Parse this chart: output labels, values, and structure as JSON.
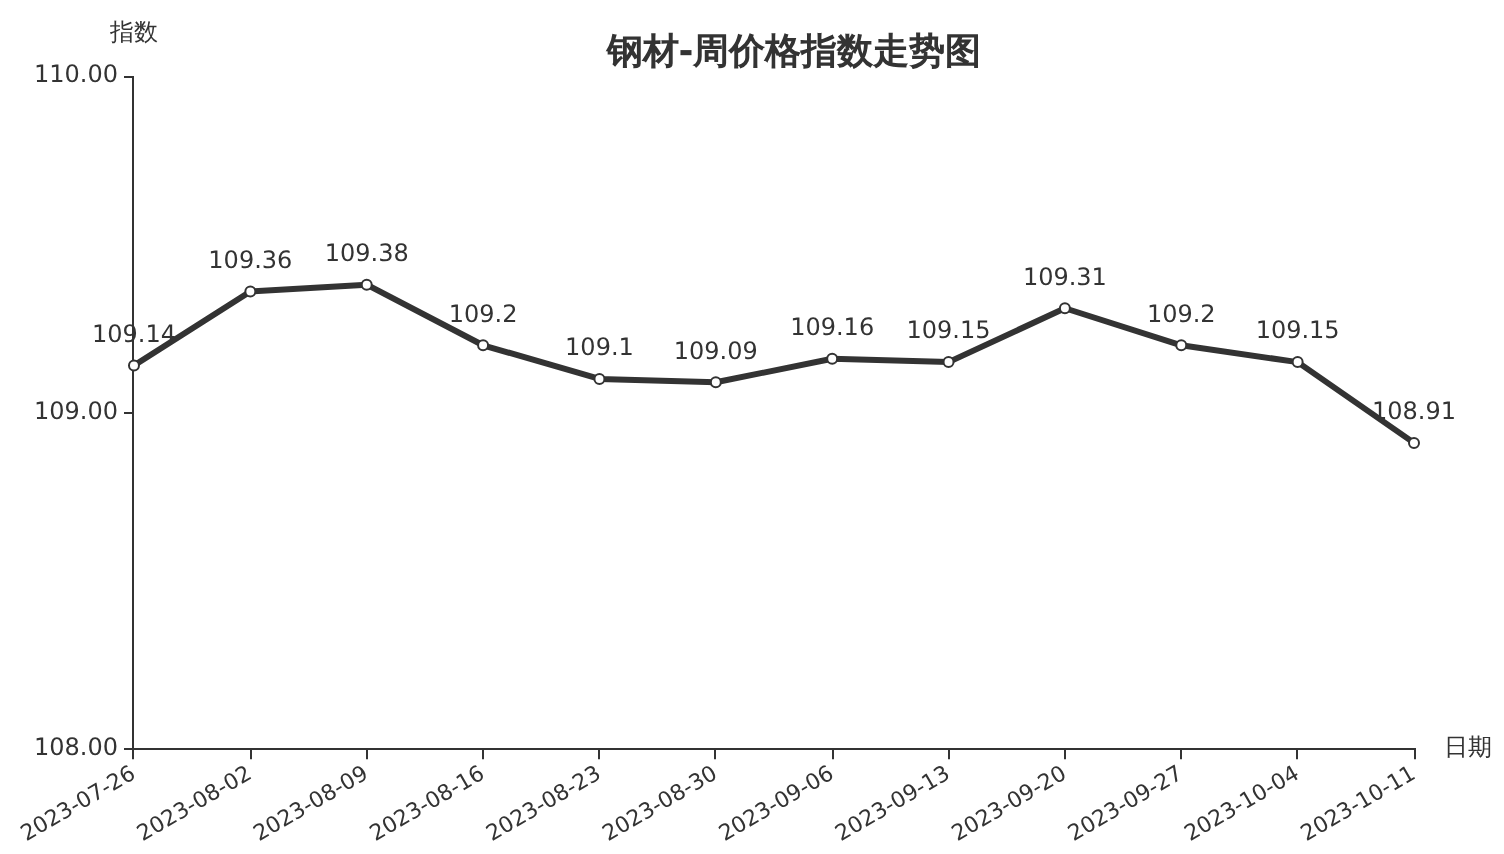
{
  "chart_data": {
    "type": "line",
    "title": "钢材-周价格指数走势图",
    "xlabel": "日期",
    "ylabel": "指数",
    "categories": [
      "2023-07-26",
      "2023-08-02",
      "2023-08-09",
      "2023-08-16",
      "2023-08-23",
      "2023-08-30",
      "2023-09-06",
      "2023-09-13",
      "2023-09-20",
      "2023-09-27",
      "2023-10-04",
      "2023-10-11"
    ],
    "values": [
      109.14,
      109.36,
      109.38,
      109.2,
      109.1,
      109.09,
      109.16,
      109.15,
      109.31,
      109.2,
      109.15,
      108.91
    ],
    "color": "#333333",
    "ylim": [
      108,
      110
    ],
    "yticks": [
      {
        "value": 108,
        "label": "108.00"
      },
      {
        "value": 109,
        "label": "109.00"
      },
      {
        "value": 110,
        "label": "110.00"
      }
    ],
    "grid": false,
    "marker": "circle",
    "line_style": "solid",
    "data_labels": true
  }
}
